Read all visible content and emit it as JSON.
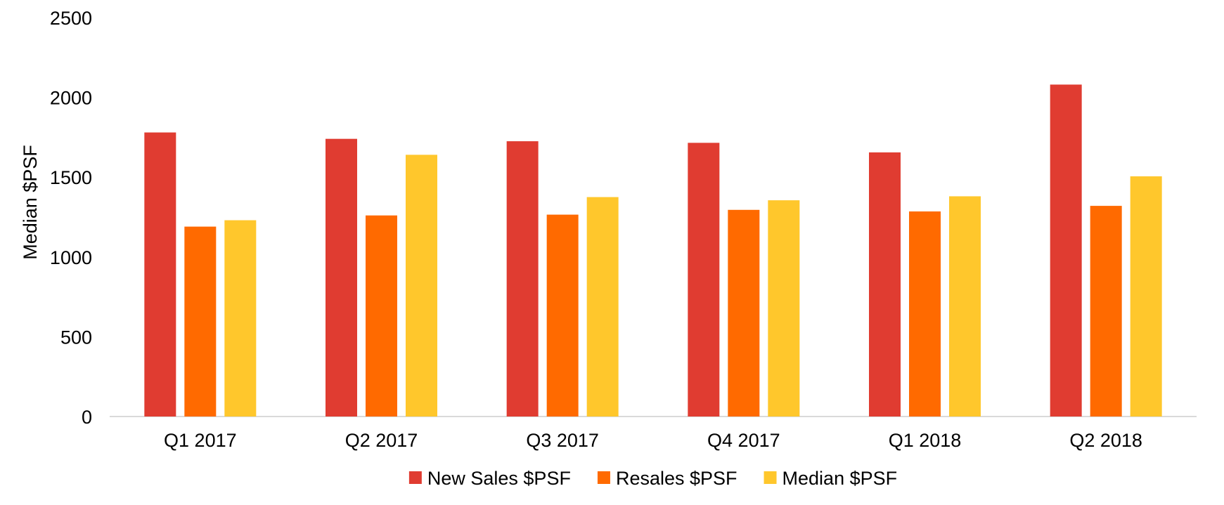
{
  "chart_data": {
    "type": "bar",
    "categories": [
      "Q1 2017",
      "Q2 2017",
      "Q3 2017",
      "Q4 2017",
      "Q1 2018",
      "Q2 2018"
    ],
    "series": [
      {
        "name": "New Sales $PSF",
        "color": "#e03c31",
        "values": [
          1780,
          1740,
          1725,
          1715,
          1655,
          2080
        ]
      },
      {
        "name": "Resales $PSF",
        "color": "#ff6a00",
        "values": [
          1190,
          1260,
          1265,
          1295,
          1285,
          1320
        ]
      },
      {
        "name": "Median $PSF",
        "color": "#ffc72c",
        "values": [
          1230,
          1640,
          1375,
          1355,
          1380,
          1505
        ]
      }
    ],
    "title": "",
    "xlabel": "",
    "ylabel": "Median $PSF",
    "ylim": [
      0,
      2500
    ],
    "yticks": [
      "0",
      "500",
      "1000",
      "1500",
      "2000",
      "2500"
    ],
    "grid": false,
    "legend_position": "bottom"
  }
}
